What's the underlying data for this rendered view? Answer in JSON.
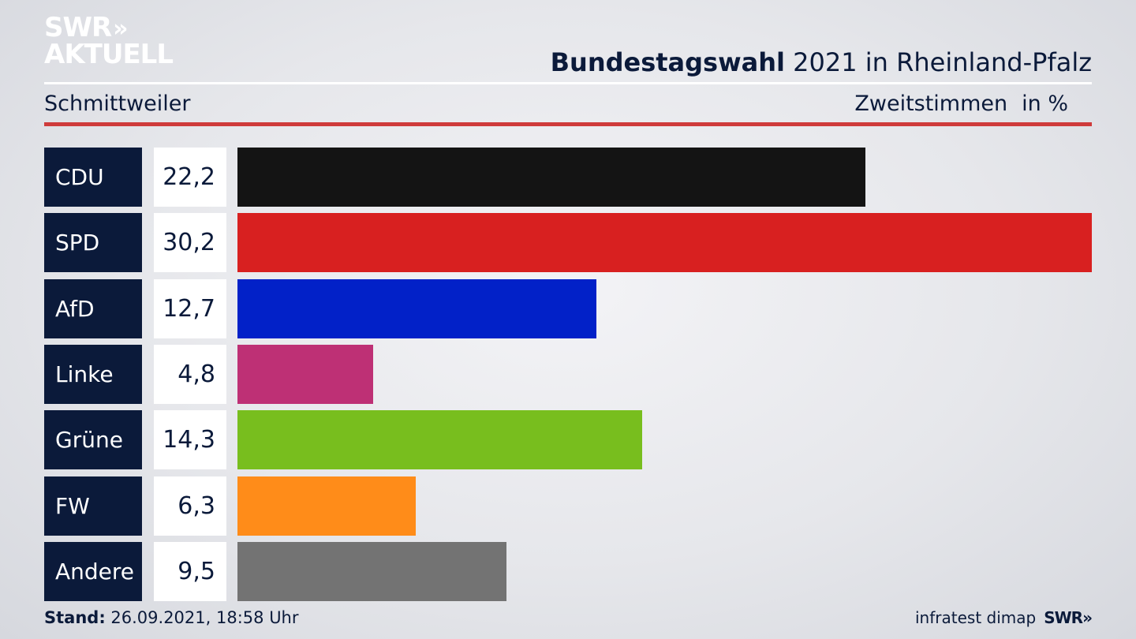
{
  "brand": {
    "line1": "SWR",
    "line2": "AKTUELL",
    "arrows": "»"
  },
  "header": {
    "title_bold": "Bundestagswahl",
    "title_rest": "2021 in Rheinland-Pfalz",
    "location": "Schmittweiler",
    "measure": "Zweitstimmen",
    "unit": "in %"
  },
  "footer": {
    "stand_label": "Stand:",
    "stand_value": "26.09.2021, 18:58 Uhr",
    "source": "infratest dimap",
    "logo": "SWR»"
  },
  "chart_data": {
    "type": "bar",
    "orientation": "horizontal",
    "categories": [
      "CDU",
      "SPD",
      "AfD",
      "Linke",
      "Grüne",
      "FW",
      "Andere"
    ],
    "values": [
      22.2,
      30.2,
      12.7,
      4.8,
      14.3,
      6.3,
      9.5
    ],
    "value_labels": [
      "22,2",
      "30,2",
      "12,7",
      "4,8",
      "14,3",
      "6,3",
      "9,5"
    ],
    "colors": [
      "#141414",
      "#d82020",
      "#0221c8",
      "#be3075",
      "#78be1e",
      "#ff8c19",
      "#737373"
    ],
    "xlim": [
      0,
      30.2
    ]
  }
}
